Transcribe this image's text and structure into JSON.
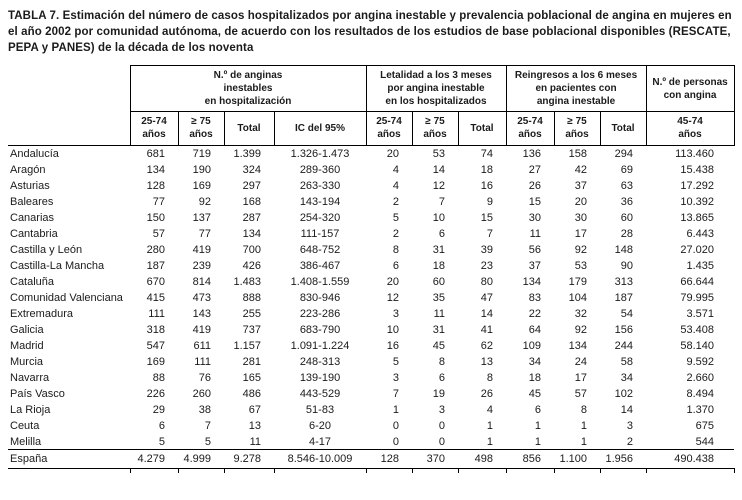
{
  "title": "TABLA 7. Estimación del número de casos hospitalizados por angina inestable y prevalencia poblacional de angina en mujeres en el año 2002 por comunidad autónoma, de acuerdo con los resultados de los estudios de base poblacional disponibles (RESCATE, PEPA y PANES) de la década de los noventa",
  "table": {
    "groups": [
      {
        "label": "N.º de anginas\ninestables\nen hospitalización",
        "span": 4
      },
      {
        "label": "Letalidad a los 3 meses\npor angina inestable\nen los hospitalizados",
        "span": 3
      },
      {
        "label": "Reingresos a los 6 meses\nen pacientes con\nangina inestable",
        "span": 3
      },
      {
        "label": "N.º de personas\ncon angina",
        "span": 1
      }
    ],
    "sub_headers": [
      "25-74\naños",
      "≥ 75\naños",
      "Total",
      "IC del 95%",
      "25-74\naños",
      "≥ 75\naños",
      "Total",
      "25-74\naños",
      "≥ 75\naños",
      "Total",
      "45-74\naños"
    ],
    "rows": [
      {
        "label": "Andalucía",
        "values": [
          "681",
          "719",
          "1.399",
          "1.326-1.473",
          "20",
          "53",
          "74",
          "136",
          "158",
          "294",
          "113.460"
        ]
      },
      {
        "label": "Aragón",
        "values": [
          "134",
          "190",
          "324",
          "289-360",
          "4",
          "14",
          "18",
          "27",
          "42",
          "69",
          "15.438"
        ]
      },
      {
        "label": "Asturias",
        "values": [
          "128",
          "169",
          "297",
          "263-330",
          "4",
          "12",
          "16",
          "26",
          "37",
          "63",
          "17.292"
        ]
      },
      {
        "label": "Baleares",
        "values": [
          "77",
          "92",
          "168",
          "143-194",
          "2",
          "7",
          "9",
          "15",
          "20",
          "36",
          "10.392"
        ]
      },
      {
        "label": "Canarias",
        "values": [
          "150",
          "137",
          "287",
          "254-320",
          "5",
          "10",
          "15",
          "30",
          "30",
          "60",
          "13.865"
        ]
      },
      {
        "label": "Cantabria",
        "values": [
          "57",
          "77",
          "134",
          "111-157",
          "2",
          "6",
          "7",
          "11",
          "17",
          "28",
          "6.443"
        ]
      },
      {
        "label": "Castilla y León",
        "values": [
          "280",
          "419",
          "700",
          "648-752",
          "8",
          "31",
          "39",
          "56",
          "92",
          "148",
          "27.020"
        ]
      },
      {
        "label": "Castilla-La Mancha",
        "values": [
          "187",
          "239",
          "426",
          "386-467",
          "6",
          "18",
          "23",
          "37",
          "53",
          "90",
          "1.435"
        ]
      },
      {
        "label": "Cataluña",
        "values": [
          "670",
          "814",
          "1.483",
          "1.408-1.559",
          "20",
          "60",
          "80",
          "134",
          "179",
          "313",
          "66.644"
        ]
      },
      {
        "label": "Comunidad Valenciana",
        "values": [
          "415",
          "473",
          "888",
          "830-946",
          "12",
          "35",
          "47",
          "83",
          "104",
          "187",
          "79.995"
        ]
      },
      {
        "label": "Extremadura",
        "values": [
          "111",
          "143",
          "255",
          "223-286",
          "3",
          "11",
          "14",
          "22",
          "32",
          "54",
          "3.571"
        ]
      },
      {
        "label": "Galicia",
        "values": [
          "318",
          "419",
          "737",
          "683-790",
          "10",
          "31",
          "41",
          "64",
          "92",
          "156",
          "53.408"
        ]
      },
      {
        "label": "Madrid",
        "values": [
          "547",
          "611",
          "1.157",
          "1.091-1.224",
          "16",
          "45",
          "62",
          "109",
          "134",
          "244",
          "58.140"
        ]
      },
      {
        "label": "Murcia",
        "values": [
          "169",
          "111",
          "281",
          "248-313",
          "5",
          "8",
          "13",
          "34",
          "24",
          "58",
          "9.592"
        ]
      },
      {
        "label": "Navarra",
        "values": [
          "88",
          "76",
          "165",
          "139-190",
          "3",
          "6",
          "8",
          "18",
          "17",
          "34",
          "2.660"
        ]
      },
      {
        "label": "País Vasco",
        "values": [
          "226",
          "260",
          "486",
          "443-529",
          "7",
          "19",
          "26",
          "45",
          "57",
          "102",
          "8.494"
        ]
      },
      {
        "label": "La Rioja",
        "values": [
          "29",
          "38",
          "67",
          "51-83",
          "1",
          "3",
          "4",
          "6",
          "8",
          "14",
          "1.370"
        ]
      },
      {
        "label": "Ceuta",
        "values": [
          "6",
          "7",
          "13",
          "6-20",
          "0",
          "0",
          "1",
          "1",
          "1",
          "3",
          "675"
        ]
      },
      {
        "label": "Melilla",
        "values": [
          "5",
          "5",
          "11",
          "4-17",
          "0",
          "0",
          "1",
          "1",
          "1",
          "2",
          "544"
        ]
      }
    ],
    "total_row": {
      "label": "España",
      "values": [
        "4.279",
        "4.999",
        "9.278",
        "8.546-10.009",
        "128",
        "370",
        "498",
        "856",
        "1.100",
        "1.956",
        "490.438"
      ]
    }
  }
}
